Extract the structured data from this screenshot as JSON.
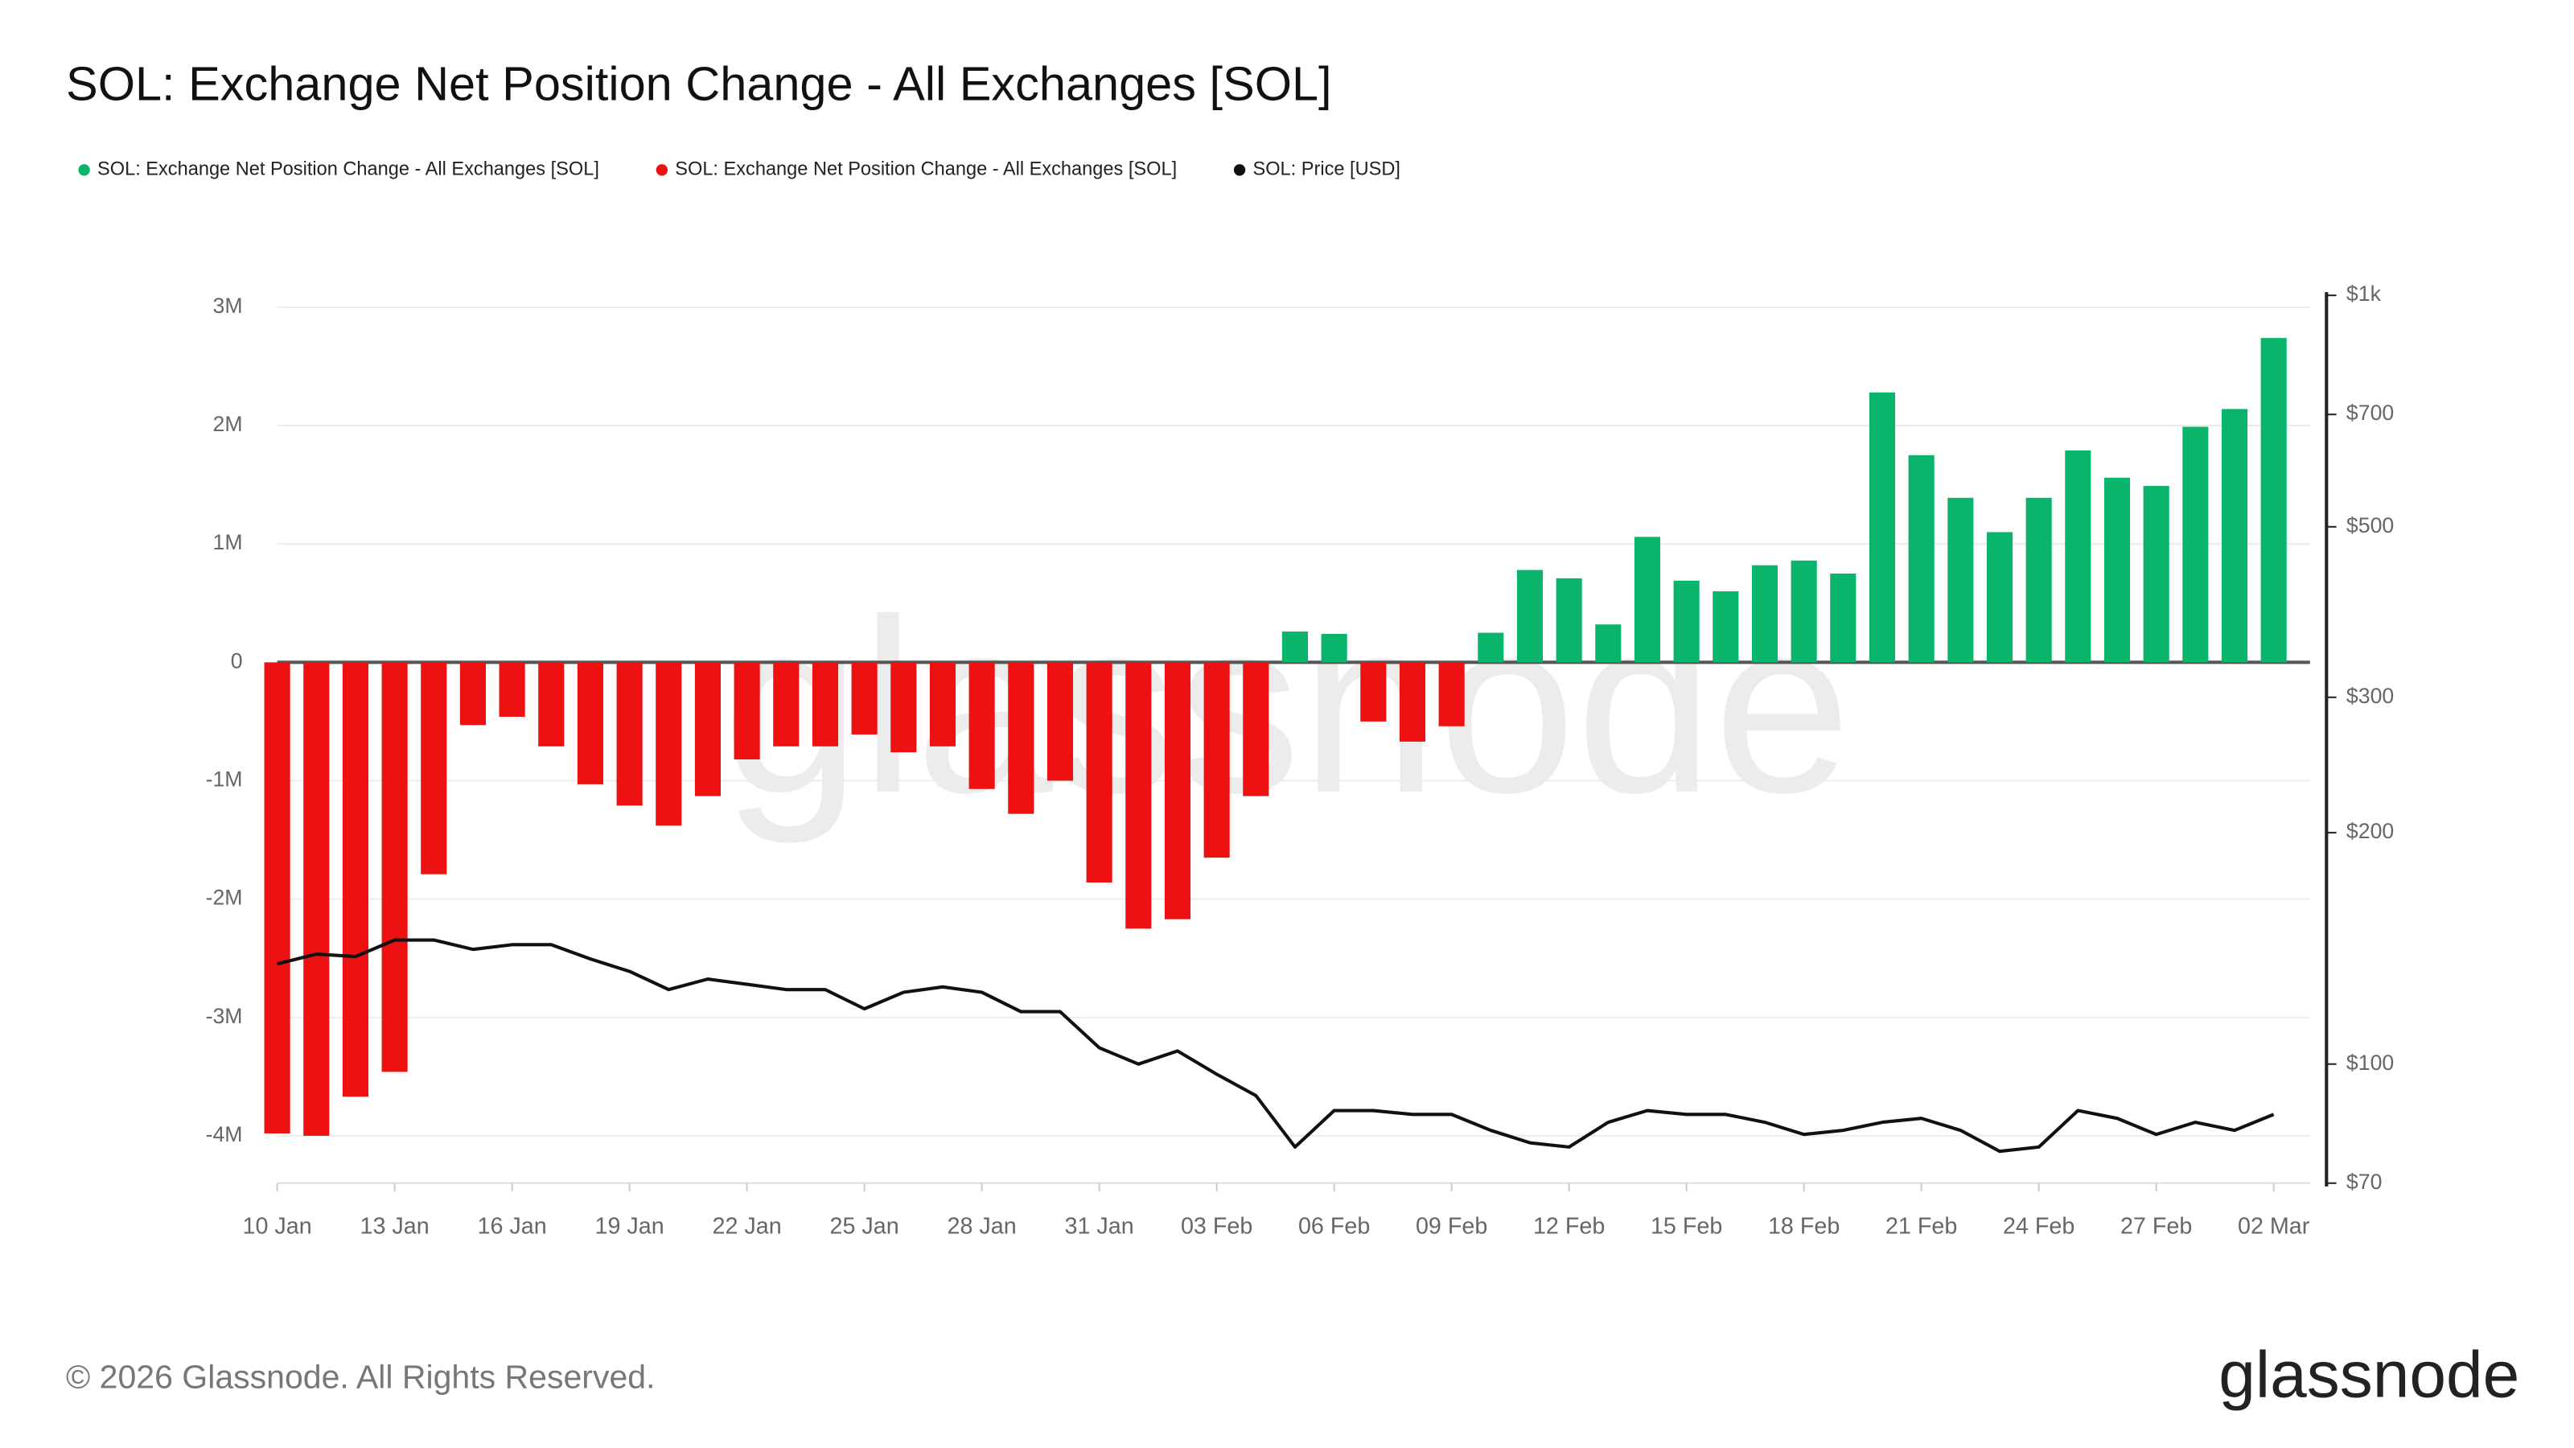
{
  "chart_data": {
    "type": "bar",
    "title": "SOL: Exchange Net Position Change - All Exchanges [SOL]",
    "watermark": "glassnode",
    "footer": "© 2026 Glassnode. All Rights Reserved.",
    "logo": "glassnode",
    "categories": [
      "10 Jan",
      null,
      null,
      "13 Jan",
      null,
      null,
      "16 Jan",
      null,
      null,
      "19 Jan",
      null,
      null,
      "22 Jan",
      null,
      null,
      "25 Jan",
      null,
      null,
      "28 Jan",
      null,
      null,
      "31 Jan",
      null,
      null,
      "03 Feb",
      null,
      null,
      "06 Feb",
      null,
      null,
      "09 Feb",
      null,
      null,
      "12 Feb",
      null,
      null,
      "15 Feb",
      null,
      null,
      "18 Feb",
      null,
      null,
      "21 Feb",
      null,
      null,
      "24 Feb",
      null,
      null,
      "27 Feb",
      null,
      null,
      "02 Mar"
    ],
    "series": [
      {
        "name": "SOL: Exchange Net Position Change - All Exchanges [SOL]",
        "color": "#0bb46b",
        "values": [
          null,
          null,
          null,
          null,
          null,
          null,
          null,
          null,
          null,
          null,
          null,
          null,
          null,
          null,
          null,
          null,
          null,
          null,
          null,
          null,
          null,
          null,
          null,
          null,
          null,
          null,
          260000,
          240000,
          null,
          null,
          null,
          250000,
          780000,
          710000,
          320000,
          1060000,
          690000,
          600000,
          820000,
          860000,
          750000,
          2280000,
          1750000,
          1390000,
          1100000,
          1390000,
          1790000,
          1560000,
          1490000,
          1990000,
          2140000,
          2740000
        ]
      },
      {
        "name": "SOL: Exchange Net Position Change - All Exchanges [SOL]",
        "color": "#ee1111",
        "values": [
          -3980000,
          -4000000,
          -3670000,
          -3460000,
          -1790000,
          -530000,
          -460000,
          -710000,
          -1030000,
          -1210000,
          -1380000,
          -1130000,
          -820000,
          -710000,
          -710000,
          -610000,
          -760000,
          -710000,
          -1070000,
          -1280000,
          -1000000,
          -1860000,
          -2250000,
          -2170000,
          -1650000,
          -1130000,
          null,
          null,
          -500000,
          -670000,
          -540000,
          null,
          null,
          null,
          null,
          null,
          null,
          null,
          null,
          null,
          null,
          null,
          null,
          null,
          null,
          null,
          null,
          null,
          null,
          null,
          null,
          null
        ]
      },
      {
        "name": "SOL: Price [USD]",
        "color": "#111111",
        "type": "line",
        "axis": "y2",
        "values": [
          135,
          139,
          138,
          145,
          145,
          141,
          143,
          143,
          137,
          132,
          125,
          129,
          127,
          125,
          125,
          118,
          124,
          126,
          124,
          117,
          117,
          105,
          100,
          104,
          97,
          91,
          78,
          87,
          87,
          86,
          86,
          82,
          79,
          78,
          84,
          87,
          86,
          86,
          84,
          81,
          82,
          84,
          85,
          82,
          77,
          78,
          87,
          85,
          81,
          84,
          82,
          86
        ]
      }
    ],
    "ylim": [
      -4400000,
      3100000
    ],
    "yticks": [
      {
        "value": -4000000,
        "label": "-4M"
      },
      {
        "value": -3000000,
        "label": "-3M"
      },
      {
        "value": -2000000,
        "label": "-2M"
      },
      {
        "value": -1000000,
        "label": "-1M"
      },
      0,
      {
        "value": 1000000,
        "label": "1M"
      },
      {
        "value": 2000000,
        "label": "2M"
      },
      {
        "value": 3000000,
        "label": "3M"
      }
    ],
    "y2lim": [
      70,
      1000
    ],
    "y2scale": "log",
    "y2ticks": [
      {
        "value": 70,
        "label": "$70"
      },
      {
        "value": 100,
        "label": "$100"
      },
      {
        "value": 200,
        "label": "$200"
      },
      {
        "value": 300,
        "label": "$300"
      },
      {
        "value": 500,
        "label": "$500"
      },
      {
        "value": 700,
        "label": "$700"
      },
      {
        "value": 1000,
        "label": "$1k"
      }
    ],
    "grid": true
  }
}
